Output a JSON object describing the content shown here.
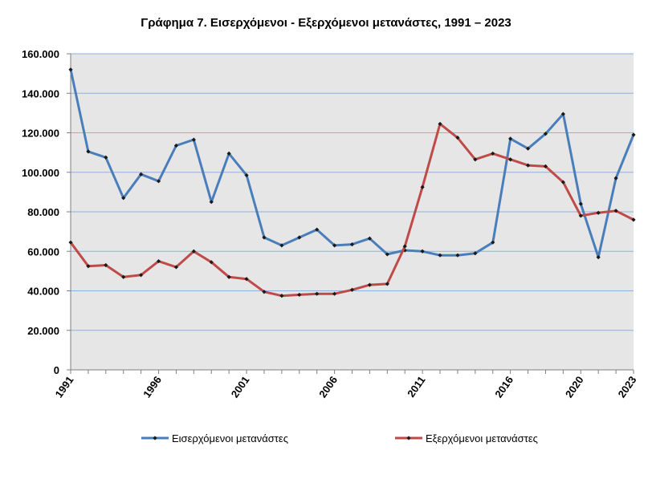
{
  "chart_data": {
    "type": "line",
    "title": "Γράφημα 7. Εισερχόμενοι - Εξερχόμενοι μετανάστες, 1991 – 2023",
    "xlabel": "",
    "ylabel": "",
    "x": [
      1991,
      1992,
      1993,
      1994,
      1995,
      1996,
      1997,
      1998,
      1999,
      2000,
      2001,
      2002,
      2003,
      2004,
      2005,
      2006,
      2007,
      2008,
      2009,
      2010,
      2011,
      2012,
      2013,
      2014,
      2015,
      2016,
      2017,
      2018,
      2019,
      2020,
      2021,
      2022,
      2023
    ],
    "x_tick_labels": [
      "1991",
      "1996",
      "2001",
      "2006",
      "2011",
      "2016",
      "2020",
      "2023"
    ],
    "x_tick_values": [
      1991,
      1996,
      2001,
      2006,
      2011,
      2016,
      2020,
      2023
    ],
    "ylim": [
      0,
      160000
    ],
    "y_tick_values": [
      0,
      20000,
      40000,
      60000,
      80000,
      100000,
      120000,
      140000,
      160000
    ],
    "y_tick_labels": [
      "0",
      "20.000",
      "40.000",
      "60.000",
      "80.000",
      "100.000",
      "120.000",
      "140.000",
      "160.000"
    ],
    "grid": true,
    "legend_position": "bottom",
    "series": [
      {
        "name": "Εισερχόμενοι μετανάστες",
        "color": "#4a7ebb",
        "values": [
          152000,
          110500,
          107500,
          87000,
          99000,
          95500,
          113500,
          116500,
          85000,
          109500,
          98500,
          67000,
          63000,
          67000,
          71000,
          63000,
          63500,
          66500,
          58500,
          60500,
          60000,
          58000,
          58000,
          59000,
          64500,
          117000,
          112000,
          119500,
          129500,
          84000,
          57000,
          97000,
          119000
        ]
      },
      {
        "name": "Εξερχόμενοι μετανάστες",
        "color": "#be4b48",
        "values": [
          64500,
          52500,
          53000,
          47000,
          48000,
          55000,
          52000,
          60000,
          54500,
          47000,
          46000,
          39500,
          37500,
          38000,
          38500,
          38500,
          40500,
          43000,
          43500,
          62500,
          92500,
          124500,
          117500,
          106500,
          109500,
          106500,
          103500,
          103000,
          95000,
          78000,
          79500,
          80500,
          76000
        ]
      }
    ]
  }
}
